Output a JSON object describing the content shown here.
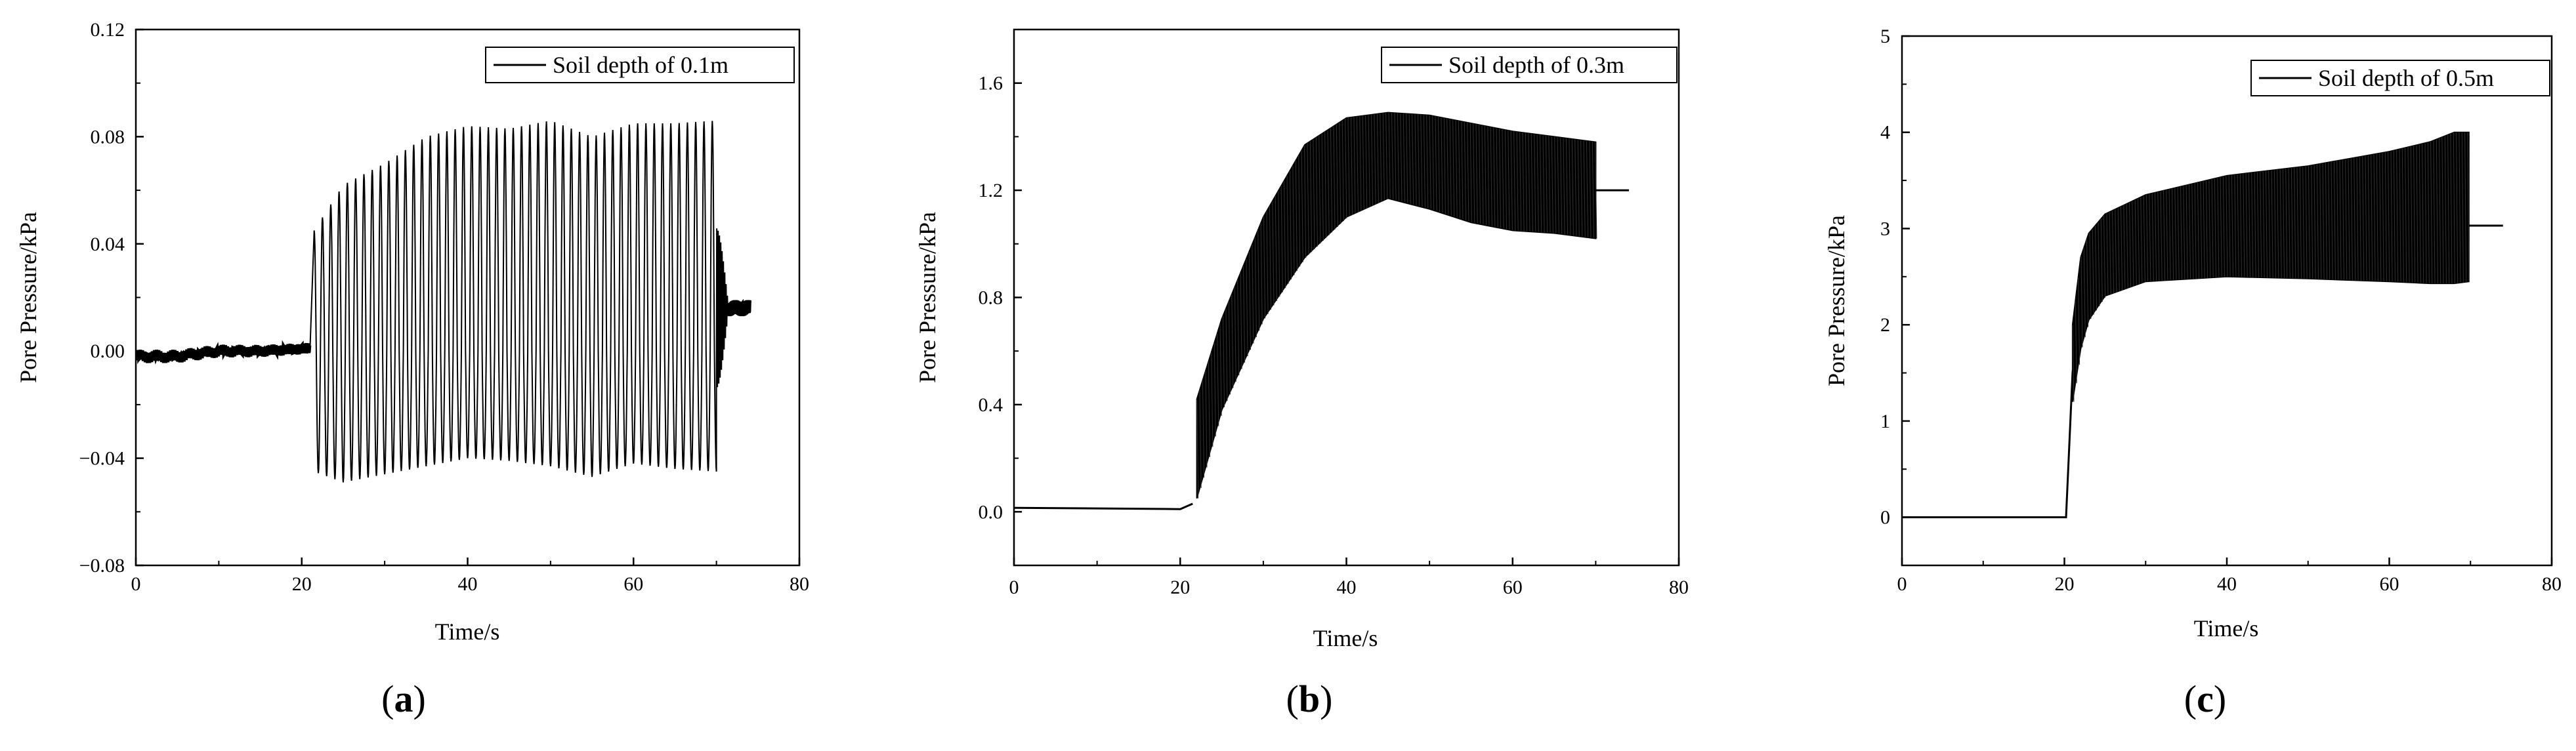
{
  "chart_data": [
    {
      "type": "line",
      "panel_label": "a",
      "xlabel": "Time/s",
      "ylabel": "Pore Pressure/kPa",
      "xlim": [
        0,
        80
      ],
      "ylim": [
        -0.08,
        0.12
      ],
      "x_ticks": [
        0,
        20,
        40,
        60,
        80
      ],
      "x_tick_labels": [
        "0",
        "20",
        "40",
        "60",
        "80"
      ],
      "y_ticks": [
        -0.08,
        -0.04,
        0.0,
        0.04,
        0.08,
        0.12
      ],
      "y_tick_labels": [
        "−0.08",
        "−0.04",
        "0.00",
        "0.04",
        "0.08",
        "0.12"
      ],
      "grid": false,
      "legend_position": "top-right",
      "series": [
        {
          "name": "Soil depth of 0.1m",
          "color": "#000000",
          "description_points": {
            "x": [
              0,
              5,
              10,
              15,
              20,
              21,
              21.2,
              25,
              30,
              35,
              40,
              45,
              50,
              55,
              60,
              65,
              70,
              71,
              72,
              74
            ],
            "y": [
              -0.002,
              -0.002,
              0.0,
              0.0,
              0.001,
              0.001,
              0.045,
              0.062,
              0.07,
              0.08,
              0.084,
              0.083,
              0.086,
              0.08,
              0.085,
              0.085,
              0.085,
              0.03,
              0.017,
              0.016
            ]
          },
          "envelope": {
            "x": [
              21.5,
              25,
              30,
              35,
              40,
              45,
              50,
              55,
              60,
              65,
              70
            ],
            "upper": [
              0.045,
              0.062,
              0.07,
              0.08,
              0.084,
              0.083,
              0.086,
              0.08,
              0.085,
              0.085,
              0.086
            ],
            "lower": [
              -0.045,
              -0.049,
              -0.046,
              -0.043,
              -0.04,
              -0.041,
              -0.043,
              -0.047,
              -0.042,
              -0.044,
              -0.045
            ]
          },
          "oscillation_period_s": 1.0
        }
      ]
    },
    {
      "type": "line",
      "panel_label": "b",
      "xlabel": "Time/s",
      "ylabel": "Pore Pressure/kPa",
      "xlim": [
        0,
        80
      ],
      "ylim": [
        -0.2,
        1.8
      ],
      "x_ticks": [
        0,
        20,
        40,
        60,
        80
      ],
      "x_tick_labels": [
        "0",
        "20",
        "40",
        "60",
        "80"
      ],
      "y_ticks": [
        0.0,
        0.4,
        0.8,
        1.2,
        1.6
      ],
      "y_tick_labels": [
        "0.0",
        "0.4",
        "0.8",
        "1.2",
        "1.6"
      ],
      "grid": false,
      "legend_position": "top-right",
      "series": [
        {
          "name": "Soil depth of 0.3m",
          "color": "#000000",
          "pre_event": {
            "x": [
              0,
              20,
              21.5
            ],
            "y": [
              0.015,
              0.01,
              0.03
            ]
          },
          "envelope": {
            "x": [
              22,
              25,
              30,
              35,
              40,
              45,
              50,
              55,
              60,
              65,
              70
            ],
            "upper": [
              0.42,
              0.72,
              1.1,
              1.37,
              1.47,
              1.49,
              1.48,
              1.45,
              1.42,
              1.4,
              1.38
            ],
            "lower": [
              0.05,
              0.38,
              0.72,
              0.95,
              1.1,
              1.17,
              1.13,
              1.08,
              1.05,
              1.04,
              1.02
            ]
          },
          "post_event": {
            "x": [
              69.8,
              74
            ],
            "y": [
              1.2,
              1.2
            ]
          }
        }
      ]
    },
    {
      "type": "line",
      "panel_label": "c",
      "xlabel": "Time/s",
      "ylabel": "Pore Pressure/kPa",
      "xlim": [
        0,
        80
      ],
      "ylim": [
        -0.5,
        5
      ],
      "x_ticks": [
        0,
        20,
        40,
        60,
        80
      ],
      "x_tick_labels": [
        "0",
        "20",
        "40",
        "60",
        "80"
      ],
      "y_ticks": [
        0,
        1,
        2,
        3,
        4,
        5
      ],
      "y_tick_labels": [
        "0",
        "1",
        "2",
        "3",
        "4",
        "5"
      ],
      "grid": false,
      "legend_position": "top-right",
      "series": [
        {
          "name": "Soil depth of 0.5m",
          "color": "#000000",
          "pre_event": {
            "x": [
              0,
              20,
              20.2
            ],
            "y": [
              0,
              0,
              0
            ]
          },
          "rise": {
            "x": [
              20.2,
              21,
              22,
              23
            ],
            "y": [
              0,
              1.5,
              2.3,
              2.6
            ]
          },
          "envelope": {
            "x": [
              21,
              22,
              23,
              25,
              30,
              40,
              50,
              60,
              65,
              68,
              69.8
            ],
            "upper": [
              2.0,
              2.7,
              2.95,
              3.15,
              3.35,
              3.55,
              3.65,
              3.8,
              3.9,
              4.0,
              4.0
            ],
            "lower": [
              1.2,
              1.75,
              2.05,
              2.3,
              2.45,
              2.5,
              2.48,
              2.45,
              2.43,
              2.43,
              2.45
            ]
          },
          "post_event": {
            "x": [
              69.8,
              74
            ],
            "y": [
              3.03,
              3.03
            ]
          }
        }
      ]
    }
  ]
}
